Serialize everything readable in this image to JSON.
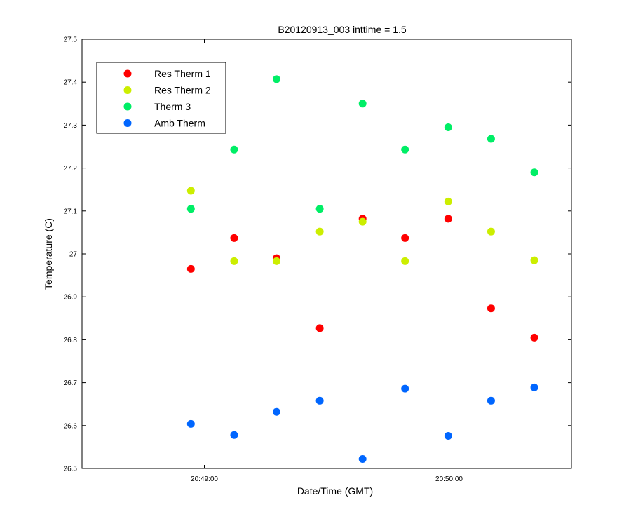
{
  "chart_data": {
    "type": "scatter",
    "title": "B20120913_003 inttime = 1.5",
    "xlabel": "Date/Time (GMT)",
    "ylabel": "Temperature (C)",
    "x_axis": {
      "unit": "seconds after 20:48:00",
      "range": [
        30,
        150
      ],
      "ticks": [
        {
          "value": 60,
          "label": "20:49:00"
        },
        {
          "value": 120,
          "label": "20:50:00"
        }
      ]
    },
    "y_axis": {
      "range": [
        26.5,
        27.5
      ],
      "ticks": [
        {
          "value": 26.5,
          "label": "26.5"
        },
        {
          "value": 26.6,
          "label": "26.6"
        },
        {
          "value": 26.7,
          "label": "26.7"
        },
        {
          "value": 26.8,
          "label": "26.8"
        },
        {
          "value": 26.9,
          "label": "26.9"
        },
        {
          "value": 27.0,
          "label": "27"
        },
        {
          "value": 27.1,
          "label": "27.1"
        },
        {
          "value": 27.2,
          "label": "27.2"
        },
        {
          "value": 27.3,
          "label": "27.3"
        },
        {
          "value": 27.4,
          "label": "27.4"
        },
        {
          "value": 27.5,
          "label": "27.5"
        }
      ]
    },
    "grid": false,
    "legend_position": "top-left",
    "x": [
      56.7,
      67.3,
      77.7,
      88.3,
      98.8,
      109.2,
      119.8,
      130.3,
      140.9
    ],
    "series": [
      {
        "name": "Res Therm 1",
        "color": "#ff0000",
        "values": [
          26.965,
          27.037,
          26.99,
          26.827,
          27.082,
          27.037,
          27.082,
          26.873,
          26.805
        ]
      },
      {
        "name": "Res Therm 2",
        "color": "#ccee00",
        "values": [
          27.147,
          26.983,
          26.983,
          27.052,
          27.075,
          26.983,
          27.122,
          27.052,
          26.985
        ]
      },
      {
        "name": "Therm 3",
        "color": "#00ee66",
        "values": [
          27.105,
          27.243,
          27.407,
          27.105,
          27.35,
          27.243,
          27.295,
          27.268,
          27.19
        ]
      },
      {
        "name": "Amb Therm",
        "color": "#0066ff",
        "values": [
          26.604,
          26.578,
          26.632,
          26.658,
          26.522,
          26.686,
          26.576,
          26.658,
          26.689
        ]
      }
    ]
  }
}
